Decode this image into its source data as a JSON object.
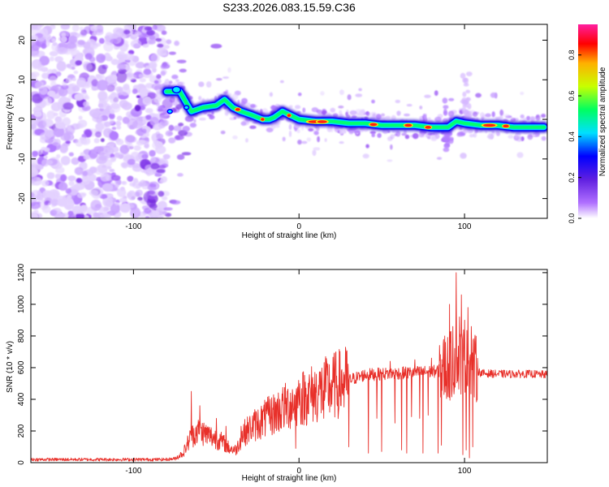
{
  "chart_data": [
    {
      "type": "heatmap",
      "title": "S233.2026.083.15.59.C36",
      "xlabel": "Height of straight line (km)",
      "ylabel": "Frequency (Hz)",
      "xlim": [
        -162,
        150
      ],
      "ylim": [
        -25,
        24
      ],
      "xticks": [
        -100,
        0,
        100
      ],
      "yticks": [
        -20,
        -10,
        0,
        10,
        20
      ],
      "colorbar": {
        "label": "Normalized spectral amplitude",
        "range": [
          0,
          0.95
        ],
        "ticks": [
          0,
          0.2,
          0.4,
          0.6,
          0.8
        ],
        "tick_labels": [
          "0.0",
          "0.2",
          "0.4",
          "0.6",
          "0.8"
        ],
        "colors": [
          "#ffffff",
          "#b070ff",
          "#6020e0",
          "#0000ff",
          "#00e0ff",
          "#00ff60",
          "#c8ff00",
          "#ffb000",
          "#ff0000",
          "#ff1fa0"
        ]
      },
      "trace": [
        [
          -80,
          7
        ],
        [
          -72,
          7
        ],
        [
          -65,
          2
        ],
        [
          -58,
          3
        ],
        [
          -50,
          3.5
        ],
        [
          -45,
          5
        ],
        [
          -40,
          3
        ],
        [
          -35,
          2
        ],
        [
          -28,
          1
        ],
        [
          -22,
          0
        ],
        [
          -18,
          0
        ],
        [
          -15,
          0.5
        ],
        [
          -10,
          2
        ],
        [
          -5,
          1
        ],
        [
          0,
          0
        ],
        [
          10,
          -0.5
        ],
        [
          20,
          -0.5
        ],
        [
          30,
          -1
        ],
        [
          40,
          -1
        ],
        [
          50,
          -1.5
        ],
        [
          60,
          -1.5
        ],
        [
          70,
          -1.5
        ],
        [
          80,
          -2
        ],
        [
          85,
          -2
        ],
        [
          90,
          -2
        ],
        [
          95,
          -0.5
        ],
        [
          100,
          -1
        ],
        [
          110,
          -1.5
        ],
        [
          120,
          -1.5
        ],
        [
          130,
          -2
        ],
        [
          140,
          -2
        ],
        [
          148,
          -2
        ]
      ]
    },
    {
      "type": "line",
      "xlabel": "Height of straight line (km)",
      "ylabel": "SNR (10 * v/v)",
      "xlim": [
        -162,
        150
      ],
      "ylim": [
        0,
        1220
      ],
      "xticks": [
        -100,
        0,
        100
      ],
      "yticks": [
        0,
        200,
        400,
        600,
        800,
        1000,
        1200
      ],
      "color": "#e8302a",
      "envelope": [
        [
          -162,
          20
        ],
        [
          -80,
          20
        ],
        [
          -75,
          25
        ],
        [
          -70,
          60
        ],
        [
          -66,
          150
        ],
        [
          -62,
          200
        ],
        [
          -58,
          190
        ],
        [
          -52,
          160
        ],
        [
          -46,
          130
        ],
        [
          -42,
          90
        ],
        [
          -38,
          80
        ],
        [
          -34,
          180
        ],
        [
          -28,
          230
        ],
        [
          -20,
          280
        ],
        [
          -10,
          340
        ],
        [
          0,
          400
        ],
        [
          10,
          440
        ],
        [
          20,
          480
        ],
        [
          30,
          520
        ],
        [
          40,
          555
        ],
        [
          50,
          560
        ],
        [
          60,
          565
        ],
        [
          70,
          570
        ],
        [
          80,
          575
        ],
        [
          85,
          580
        ],
        [
          90,
          600
        ],
        [
          95,
          640
        ],
        [
          100,
          650
        ],
        [
          105,
          600
        ],
        [
          110,
          565
        ],
        [
          120,
          560
        ],
        [
          130,
          560
        ],
        [
          140,
          560
        ],
        [
          150,
          555
        ]
      ],
      "dips": [
        [
          -2,
          90
        ],
        [
          15,
          280
        ],
        [
          30,
          100
        ],
        [
          42,
          60
        ],
        [
          47,
          280
        ],
        [
          50,
          70
        ],
        [
          55,
          60
        ],
        [
          58,
          250
        ],
        [
          62,
          80
        ],
        [
          65,
          60
        ],
        [
          68,
          290
        ],
        [
          70,
          70
        ],
        [
          73,
          280
        ],
        [
          75,
          60
        ],
        [
          78,
          300
        ],
        [
          80,
          100
        ],
        [
          84,
          60
        ],
        [
          86,
          110
        ],
        [
          88,
          80
        ],
        [
          91,
          130
        ],
        [
          93,
          40
        ],
        [
          95,
          120
        ],
        [
          97,
          30
        ],
        [
          99,
          50
        ],
        [
          101,
          80
        ],
        [
          103,
          30
        ],
        [
          105,
          100
        ]
      ],
      "spikes": [
        [
          -65,
          450
        ],
        [
          -60,
          360
        ],
        [
          -50,
          280
        ],
        [
          -44,
          230
        ],
        [
          -35,
          230
        ],
        [
          -20,
          380
        ],
        [
          -10,
          390
        ],
        [
          0,
          410
        ],
        [
          5,
          430
        ],
        [
          55,
          640
        ],
        [
          70,
          650
        ],
        [
          80,
          660
        ],
        [
          85,
          740
        ],
        [
          88,
          800
        ],
        [
          91,
          1000
        ],
        [
          93,
          860
        ],
        [
          95,
          1200
        ],
        [
          97,
          920
        ],
        [
          98,
          1060
        ],
        [
          100,
          900
        ],
        [
          102,
          980
        ],
        [
          104,
          860
        ],
        [
          106,
          760
        ]
      ]
    }
  ]
}
